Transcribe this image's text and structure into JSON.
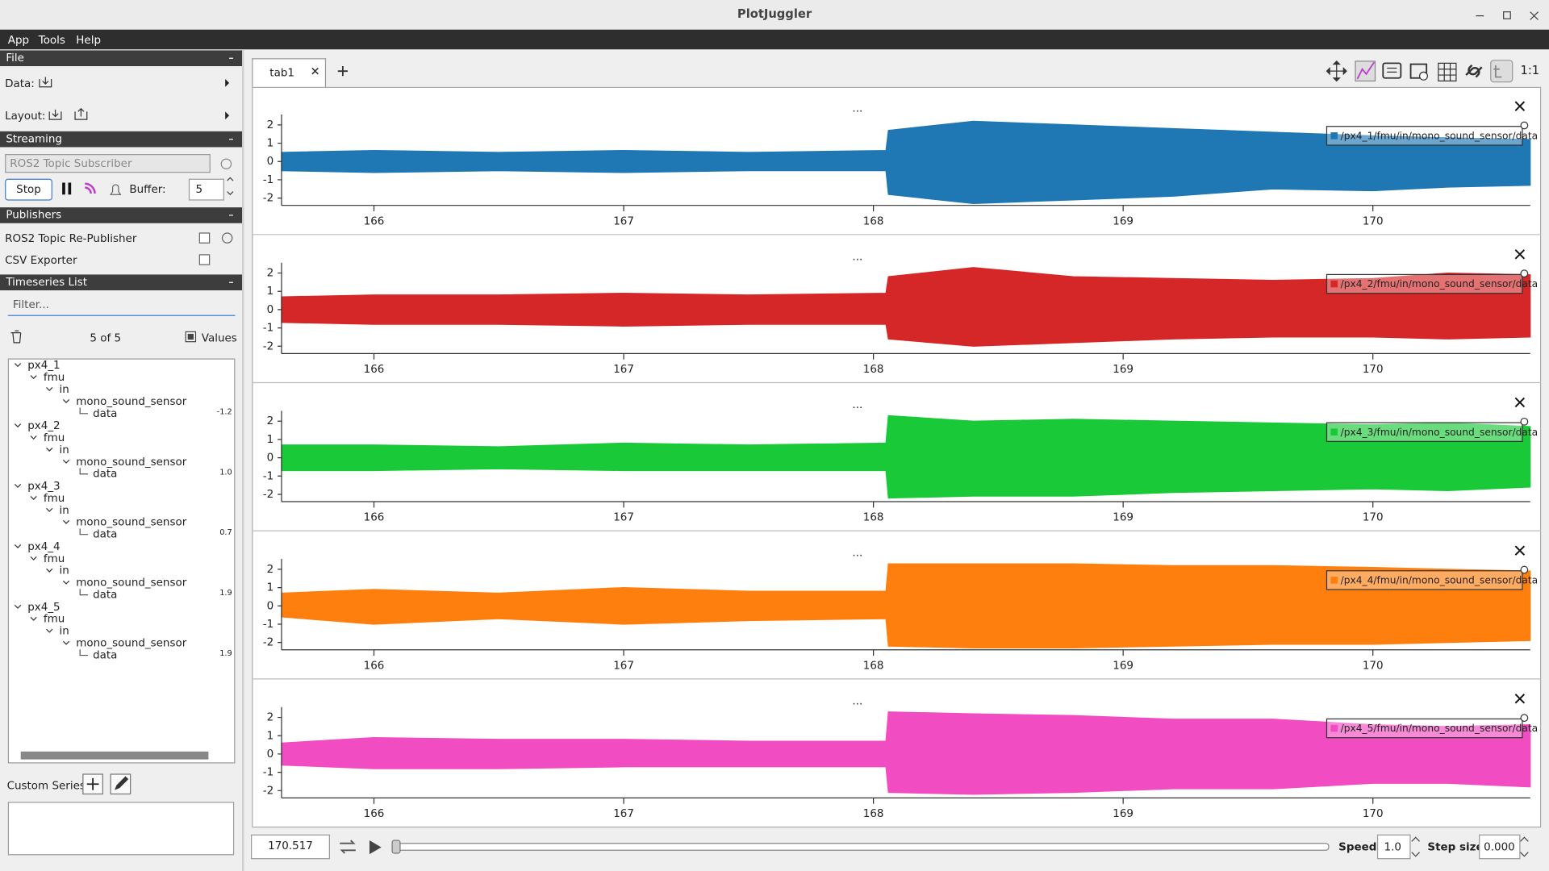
{
  "window": {
    "title": "PlotJuggler"
  },
  "menu": [
    "App",
    "Tools",
    "Help"
  ],
  "sidebar": {
    "file": {
      "header": "File",
      "data": "Data:",
      "layout": "Layout:"
    },
    "streaming": {
      "header": "Streaming",
      "source": "ROS2 Topic Subscriber",
      "stop": "Stop",
      "buffer_label": "Buffer:",
      "buffer": "5"
    },
    "publishers": {
      "header": "Publishers",
      "items": [
        "ROS2 Topic Re-Publisher",
        "CSV Exporter"
      ]
    },
    "timeseries": {
      "header": "Timeseries List",
      "filter": "Filter...",
      "count": "5 of 5",
      "values_label": "Values",
      "tree": [
        {
          "name": "px4_1",
          "path": [
            "fmu",
            "in",
            "mono_sound_sensor",
            "data"
          ],
          "value": "-1.2"
        },
        {
          "name": "px4_2",
          "path": [
            "fmu",
            "in",
            "mono_sound_sensor",
            "data"
          ],
          "value": "1.0"
        },
        {
          "name": "px4_3",
          "path": [
            "fmu",
            "in",
            "mono_sound_sensor",
            "data"
          ],
          "value": "0.7"
        },
        {
          "name": "px4_4",
          "path": [
            "fmu",
            "in",
            "mono_sound_sensor",
            "data"
          ],
          "value": "1.9"
        },
        {
          "name": "px4_5",
          "path": [
            "fmu",
            "in",
            "mono_sound_sensor",
            "data"
          ],
          "value": "1.9"
        }
      ]
    },
    "custom_series": "Custom Series:"
  },
  "tabs": {
    "items": [
      "tab1"
    ],
    "zoom": "1:1"
  },
  "chart_data": [
    {
      "type": "band",
      "title": "...",
      "x": [
        165.63,
        166.0,
        166.5,
        167.0,
        167.5,
        168.05,
        168.06,
        168.4,
        168.8,
        169.2,
        169.6,
        170.0,
        170.3,
        170.63
      ],
      "series": [
        {
          "name": "/px4_1/fmu/in/mono_sound_sensor/data",
          "color": "#1f77b4",
          "upper": [
            0.5,
            0.6,
            0.5,
            0.6,
            0.5,
            0.6,
            1.7,
            2.2,
            2.0,
            1.8,
            1.6,
            1.4,
            1.3,
            1.2
          ],
          "lower": [
            -0.5,
            -0.6,
            -0.5,
            -0.6,
            -0.5,
            -0.5,
            -1.8,
            -2.3,
            -2.1,
            -1.9,
            -1.5,
            -1.6,
            -1.4,
            -1.3
          ]
        }
      ],
      "xlim": [
        165.63,
        170.63
      ],
      "xticks": [
        166,
        167,
        168,
        169,
        170
      ],
      "ylim": [
        -2.4,
        2.35
      ],
      "yticks": [
        -2,
        -1,
        0,
        1,
        2
      ],
      "legend": "top-right"
    },
    {
      "type": "band",
      "title": "...",
      "x": [
        165.63,
        166.0,
        166.5,
        167.0,
        167.5,
        168.05,
        168.06,
        168.4,
        168.8,
        169.2,
        169.6,
        170.0,
        170.3,
        170.63
      ],
      "series": [
        {
          "name": "/px4_2/fmu/in/mono_sound_sensor/data",
          "color": "#d62728",
          "upper": [
            0.7,
            0.8,
            0.8,
            0.9,
            0.8,
            0.9,
            1.8,
            2.3,
            1.8,
            1.7,
            1.6,
            1.7,
            2.0,
            1.9
          ],
          "lower": [
            -0.7,
            -0.8,
            -0.8,
            -0.9,
            -0.8,
            -0.8,
            -1.6,
            -2.0,
            -1.8,
            -1.6,
            -1.5,
            -1.5,
            -1.6,
            -1.5
          ]
        }
      ],
      "xlim": [
        165.63,
        170.63
      ],
      "xticks": [
        166,
        167,
        168,
        169,
        170
      ],
      "ylim": [
        -2.4,
        2.35
      ],
      "yticks": [
        -2,
        -1,
        0,
        1,
        2
      ],
      "legend": "top-right"
    },
    {
      "type": "band",
      "title": "...",
      "x": [
        165.63,
        166.0,
        166.5,
        167.0,
        167.5,
        168.05,
        168.06,
        168.4,
        168.8,
        169.2,
        169.6,
        170.0,
        170.3,
        170.63
      ],
      "series": [
        {
          "name": "/px4_3/fmu/in/mono_sound_sensor/data",
          "color": "#1ac938",
          "upper": [
            0.7,
            0.7,
            0.6,
            0.8,
            0.7,
            0.8,
            2.3,
            2.0,
            2.1,
            2.0,
            1.9,
            1.8,
            1.9,
            1.7
          ],
          "lower": [
            -0.7,
            -0.7,
            -0.6,
            -0.7,
            -0.7,
            -0.7,
            -2.2,
            -2.1,
            -2.1,
            -1.9,
            -1.8,
            -1.7,
            -1.8,
            -1.6
          ]
        }
      ],
      "xlim": [
        165.63,
        170.63
      ],
      "xticks": [
        166,
        167,
        168,
        169,
        170
      ],
      "ylim": [
        -2.4,
        2.35
      ],
      "yticks": [
        -2,
        -1,
        0,
        1,
        2
      ],
      "legend": "top-right"
    },
    {
      "type": "band",
      "title": "...",
      "x": [
        165.63,
        166.0,
        166.5,
        167.0,
        167.5,
        168.05,
        168.06,
        168.4,
        168.8,
        169.2,
        169.6,
        170.0,
        170.3,
        170.63
      ],
      "series": [
        {
          "name": "/px4_4/fmu/in/mono_sound_sensor/data",
          "color": "#ff7f0e",
          "upper": [
            0.7,
            0.9,
            0.7,
            1.0,
            0.8,
            0.8,
            2.3,
            2.3,
            2.3,
            2.2,
            2.2,
            2.1,
            2.0,
            1.9
          ],
          "lower": [
            -0.6,
            -1.0,
            -0.7,
            -1.0,
            -0.8,
            -0.7,
            -2.2,
            -2.3,
            -2.3,
            -2.2,
            -2.1,
            -2.1,
            -2.0,
            -1.9
          ]
        }
      ],
      "xlim": [
        165.63,
        170.63
      ],
      "xticks": [
        166,
        167,
        168,
        169,
        170
      ],
      "ylim": [
        -2.4,
        2.35
      ],
      "yticks": [
        -2,
        -1,
        0,
        1,
        2
      ],
      "legend": "top-right"
    },
    {
      "type": "band",
      "title": "...",
      "x": [
        165.63,
        166.0,
        166.5,
        167.0,
        167.5,
        168.05,
        168.06,
        168.4,
        168.8,
        169.2,
        169.6,
        170.0,
        170.3,
        170.63
      ],
      "series": [
        {
          "name": "/px4_5/fmu/in/mono_sound_sensor/data",
          "color": "#f14cc1",
          "upper": [
            0.6,
            0.9,
            0.8,
            0.8,
            0.7,
            0.7,
            2.3,
            2.2,
            2.1,
            1.9,
            1.9,
            1.6,
            1.5,
            1.6
          ],
          "lower": [
            -0.6,
            -0.8,
            -0.8,
            -0.7,
            -0.7,
            -0.7,
            -2.1,
            -2.2,
            -2.1,
            -1.9,
            -1.9,
            -1.6,
            -1.6,
            -1.8
          ]
        }
      ],
      "xlim": [
        165.63,
        170.63
      ],
      "xticks": [
        166,
        167,
        168,
        169,
        170
      ],
      "ylim": [
        -2.4,
        2.35
      ],
      "yticks": [
        -2,
        -1,
        0,
        1,
        2
      ],
      "legend": "top-right"
    }
  ],
  "playback": {
    "time": "170.517",
    "speed_label": "Speed:",
    "speed": "1.0",
    "step_label": "Step size:",
    "step": "0.000"
  }
}
